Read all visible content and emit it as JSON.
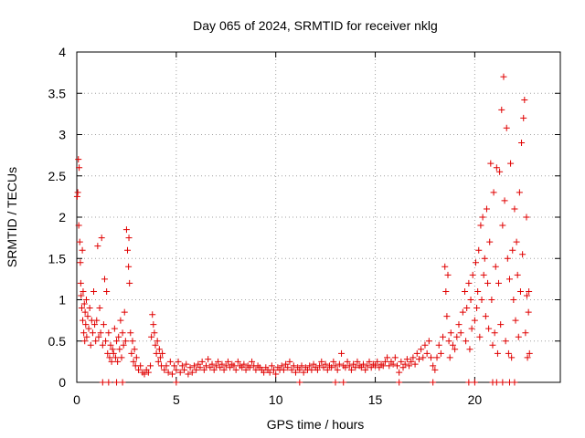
{
  "chart_data": {
    "type": "scatter",
    "title": "Day 065 of 2024, SRMTID for receiver nklg",
    "xlabel": "GPS time / hours",
    "ylabel": "SRMTID / TECUs",
    "xlim": [
      0,
      24.3
    ],
    "ylim": [
      0,
      4
    ],
    "xticks": [
      0,
      5,
      10,
      15,
      20
    ],
    "xtick_labels": [
      "0",
      "5",
      "10",
      "15",
      "20"
    ],
    "yticks": [
      0,
      0.5,
      1,
      1.5,
      2,
      2.5,
      3,
      3.5,
      4
    ],
    "ytick_labels": [
      "0",
      "0.5",
      "1",
      "1.5",
      "2",
      "2.5",
      "3",
      "3.5",
      "4"
    ],
    "grid": true,
    "marker": "+",
    "color": "#e00000",
    "series": [
      {
        "name": "SRMTID",
        "points": [
          [
            0.02,
            2.25
          ],
          [
            0.05,
            2.3
          ],
          [
            0.08,
            2.7
          ],
          [
            0.1,
            1.9
          ],
          [
            0.12,
            2.6
          ],
          [
            0.15,
            1.7
          ],
          [
            0.18,
            1.45
          ],
          [
            0.2,
            1.2
          ],
          [
            0.22,
            1.05
          ],
          [
            0.25,
            0.9
          ],
          [
            0.28,
            1.6
          ],
          [
            0.3,
            0.75
          ],
          [
            0.32,
            1.1
          ],
          [
            0.35,
            0.6
          ],
          [
            0.38,
            0.95
          ],
          [
            0.4,
            0.5
          ],
          [
            0.42,
            0.85
          ],
          [
            0.45,
            0.7
          ],
          [
            0.48,
            1.0
          ],
          [
            0.5,
            0.55
          ],
          [
            0.55,
            0.8
          ],
          [
            0.6,
            0.65
          ],
          [
            0.65,
            0.9
          ],
          [
            0.7,
            0.45
          ],
          [
            0.75,
            0.75
          ],
          [
            0.8,
            0.6
          ],
          [
            0.85,
            1.1
          ],
          [
            0.9,
            0.7
          ],
          [
            0.95,
            0.5
          ],
          [
            1.0,
            0.75
          ],
          [
            1.05,
            1.65
          ],
          [
            1.1,
            0.55
          ],
          [
            1.15,
            0.9
          ],
          [
            1.2,
            0.6
          ],
          [
            1.25,
            1.75
          ],
          [
            1.3,
            0.45
          ],
          [
            1.35,
            0.7
          ],
          [
            1.4,
            1.25
          ],
          [
            1.45,
            0.5
          ],
          [
            1.5,
            1.1
          ],
          [
            1.55,
            0.35
          ],
          [
            1.6,
            0.6
          ],
          [
            1.65,
            0.3
          ],
          [
            1.7,
            0.45
          ],
          [
            1.75,
            0.25
          ],
          [
            1.8,
            0.4
          ],
          [
            1.85,
            0.35
          ],
          [
            1.9,
            0.65
          ],
          [
            1.95,
            0.3
          ],
          [
            2.0,
            0.5
          ],
          [
            2.05,
            0.25
          ],
          [
            2.1,
            0.55
          ],
          [
            2.15,
            0.4
          ],
          [
            2.2,
            0.75
          ],
          [
            2.25,
            0.3
          ],
          [
            2.3,
            0.6
          ],
          [
            2.35,
            0.45
          ],
          [
            2.4,
            0.85
          ],
          [
            2.45,
            0.5
          ],
          [
            2.5,
            1.85
          ],
          [
            2.55,
            1.6
          ],
          [
            2.6,
            1.4
          ],
          [
            2.62,
            1.75
          ],
          [
            2.65,
            1.2
          ],
          [
            2.7,
            0.6
          ],
          [
            2.75,
            0.35
          ],
          [
            2.8,
            0.5
          ],
          [
            2.85,
            0.25
          ],
          [
            2.9,
            0.4
          ],
          [
            2.95,
            0.2
          ],
          [
            3.0,
            0.3
          ],
          [
            3.1,
            0.15
          ],
          [
            3.2,
            0.2
          ],
          [
            3.3,
            0.12
          ],
          [
            3.4,
            0.1
          ],
          [
            3.5,
            0.15
          ],
          [
            3.6,
            0.12
          ],
          [
            3.7,
            0.2
          ],
          [
            3.75,
            0.55
          ],
          [
            3.8,
            0.82
          ],
          [
            3.85,
            0.7
          ],
          [
            3.9,
            0.6
          ],
          [
            3.95,
            0.45
          ],
          [
            4.0,
            0.35
          ],
          [
            4.05,
            0.5
          ],
          [
            4.1,
            0.25
          ],
          [
            4.15,
            0.4
          ],
          [
            4.2,
            0.3
          ],
          [
            4.25,
            0.2
          ],
          [
            4.3,
            0.35
          ],
          [
            4.4,
            0.15
          ],
          [
            4.5,
            0.2
          ],
          [
            4.6,
            0.12
          ],
          [
            4.7,
            0.25
          ],
          [
            4.8,
            0.1
          ],
          [
            4.9,
            0.2
          ],
          [
            5.0,
            0.15
          ],
          [
            5.1,
            0.25
          ],
          [
            5.2,
            0.12
          ],
          [
            5.3,
            0.2
          ],
          [
            5.4,
            0.15
          ],
          [
            5.5,
            0.22
          ],
          [
            5.6,
            0.1
          ],
          [
            5.7,
            0.18
          ],
          [
            5.8,
            0.12
          ],
          [
            5.9,
            0.2
          ],
          [
            6.0,
            0.15
          ],
          [
            6.1,
            0.22
          ],
          [
            6.2,
            0.18
          ],
          [
            6.3,
            0.25
          ],
          [
            6.4,
            0.15
          ],
          [
            6.5,
            0.2
          ],
          [
            6.6,
            0.28
          ],
          [
            6.7,
            0.18
          ],
          [
            6.8,
            0.22
          ],
          [
            6.9,
            0.15
          ],
          [
            7.0,
            0.2
          ],
          [
            7.1,
            0.25
          ],
          [
            7.2,
            0.18
          ],
          [
            7.3,
            0.22
          ],
          [
            7.4,
            0.15
          ],
          [
            7.5,
            0.2
          ],
          [
            7.6,
            0.25
          ],
          [
            7.7,
            0.18
          ],
          [
            7.8,
            0.22
          ],
          [
            7.9,
            0.2
          ],
          [
            8.0,
            0.15
          ],
          [
            8.1,
            0.25
          ],
          [
            8.2,
            0.2
          ],
          [
            8.3,
            0.18
          ],
          [
            8.4,
            0.22
          ],
          [
            8.5,
            0.15
          ],
          [
            8.6,
            0.2
          ],
          [
            8.7,
            0.18
          ],
          [
            8.8,
            0.25
          ],
          [
            8.9,
            0.2
          ],
          [
            9.0,
            0.15
          ],
          [
            9.1,
            0.2
          ],
          [
            9.2,
            0.18
          ],
          [
            9.3,
            0.15
          ],
          [
            9.4,
            0.12
          ],
          [
            9.5,
            0.18
          ],
          [
            9.6,
            0.15
          ],
          [
            9.7,
            0.12
          ],
          [
            9.8,
            0.2
          ],
          [
            9.9,
            0.15
          ],
          [
            10.0,
            0.1
          ],
          [
            10.1,
            0.18
          ],
          [
            10.2,
            0.15
          ],
          [
            10.3,
            0.2
          ],
          [
            10.4,
            0.15
          ],
          [
            10.5,
            0.22
          ],
          [
            10.6,
            0.18
          ],
          [
            10.7,
            0.25
          ],
          [
            10.8,
            0.15
          ],
          [
            10.9,
            0.2
          ],
          [
            11.0,
            0.12
          ],
          [
            11.1,
            0.18
          ],
          [
            11.2,
            0.15
          ],
          [
            11.3,
            0.2
          ],
          [
            11.4,
            0.12
          ],
          [
            11.5,
            0.18
          ],
          [
            11.6,
            0.15
          ],
          [
            11.7,
            0.2
          ],
          [
            11.8,
            0.15
          ],
          [
            11.9,
            0.22
          ],
          [
            12.0,
            0.18
          ],
          [
            12.1,
            0.15
          ],
          [
            12.2,
            0.2
          ],
          [
            12.3,
            0.25
          ],
          [
            12.4,
            0.18
          ],
          [
            12.5,
            0.22
          ],
          [
            12.6,
            0.15
          ],
          [
            12.7,
            0.2
          ],
          [
            12.8,
            0.18
          ],
          [
            12.9,
            0.25
          ],
          [
            13.0,
            0.2
          ],
          [
            13.1,
            0.15
          ],
          [
            13.2,
            0.22
          ],
          [
            13.3,
            0.35
          ],
          [
            13.4,
            0.2
          ],
          [
            13.5,
            0.18
          ],
          [
            13.6,
            0.25
          ],
          [
            13.7,
            0.2
          ],
          [
            13.8,
            0.15
          ],
          [
            13.9,
            0.22
          ],
          [
            14.0,
            0.18
          ],
          [
            14.1,
            0.25
          ],
          [
            14.2,
            0.2
          ],
          [
            14.3,
            0.18
          ],
          [
            14.4,
            0.22
          ],
          [
            14.5,
            0.15
          ],
          [
            14.6,
            0.2
          ],
          [
            14.7,
            0.25
          ],
          [
            14.8,
            0.18
          ],
          [
            14.9,
            0.22
          ],
          [
            15.0,
            0.2
          ],
          [
            15.1,
            0.25
          ],
          [
            15.2,
            0.18
          ],
          [
            15.3,
            0.22
          ],
          [
            15.4,
            0.2
          ],
          [
            15.5,
            0.25
          ],
          [
            15.6,
            0.3
          ],
          [
            15.7,
            0.2
          ],
          [
            15.8,
            0.25
          ],
          [
            15.9,
            0.22
          ],
          [
            16.0,
            0.3
          ],
          [
            16.1,
            0.2
          ],
          [
            16.2,
            0.12
          ],
          [
            16.3,
            0.25
          ],
          [
            16.4,
            0.18
          ],
          [
            16.5,
            0.22
          ],
          [
            16.6,
            0.28
          ],
          [
            16.7,
            0.2
          ],
          [
            16.8,
            0.25
          ],
          [
            16.9,
            0.3
          ],
          [
            17.0,
            0.22
          ],
          [
            17.1,
            0.35
          ],
          [
            17.2,
            0.28
          ],
          [
            17.3,
            0.4
          ],
          [
            17.4,
            0.3
          ],
          [
            17.5,
            0.45
          ],
          [
            17.6,
            0.35
          ],
          [
            17.7,
            0.5
          ],
          [
            17.8,
            0.3
          ],
          [
            17.9,
            0.2
          ],
          [
            18.0,
            0.15
          ],
          [
            18.1,
            0.3
          ],
          [
            18.2,
            0.45
          ],
          [
            18.3,
            0.35
          ],
          [
            18.4,
            0.55
          ],
          [
            18.5,
            1.4
          ],
          [
            18.55,
            1.1
          ],
          [
            18.6,
            0.8
          ],
          [
            18.65,
            1.3
          ],
          [
            18.7,
            0.5
          ],
          [
            18.75,
            0.3
          ],
          [
            18.8,
            0.6
          ],
          [
            18.9,
            0.45
          ],
          [
            19.0,
            0.4
          ],
          [
            19.1,
            0.55
          ],
          [
            19.2,
            0.7
          ],
          [
            19.3,
            0.6
          ],
          [
            19.4,
            0.85
          ],
          [
            19.5,
            1.1
          ],
          [
            19.55,
            0.5
          ],
          [
            19.6,
            0.9
          ],
          [
            19.7,
            1.2
          ],
          [
            19.75,
            0.4
          ],
          [
            19.8,
            1.0
          ],
          [
            19.85,
            0.65
          ],
          [
            19.9,
            1.3
          ],
          [
            20.0,
            0.75
          ],
          [
            20.05,
            1.45
          ],
          [
            20.1,
            0.9
          ],
          [
            20.15,
            1.1
          ],
          [
            20.2,
            1.6
          ],
          [
            20.25,
            0.55
          ],
          [
            20.3,
            1.9
          ],
          [
            20.35,
            1.0
          ],
          [
            20.4,
            2.0
          ],
          [
            20.45,
            1.3
          ],
          [
            20.5,
            1.5
          ],
          [
            20.55,
            0.8
          ],
          [
            20.6,
            2.1
          ],
          [
            20.65,
            1.2
          ],
          [
            20.7,
            0.65
          ],
          [
            20.75,
            1.7
          ],
          [
            20.8,
            2.65
          ],
          [
            20.85,
            1.0
          ],
          [
            20.9,
            0.45
          ],
          [
            20.95,
            2.3
          ],
          [
            21.0,
            0.6
          ],
          [
            21.05,
            1.4
          ],
          [
            21.1,
            2.6
          ],
          [
            21.15,
            0.35
          ],
          [
            21.2,
            1.2
          ],
          [
            21.25,
            2.55
          ],
          [
            21.3,
            0.7
          ],
          [
            21.35,
            3.3
          ],
          [
            21.4,
            1.9
          ],
          [
            21.45,
            3.7
          ],
          [
            21.5,
            2.2
          ],
          [
            21.55,
            0.5
          ],
          [
            21.6,
            3.08
          ],
          [
            21.65,
            1.5
          ],
          [
            21.7,
            0.35
          ],
          [
            21.75,
            1.25
          ],
          [
            21.8,
            2.65
          ],
          [
            21.85,
            0.3
          ],
          [
            21.9,
            1.6
          ],
          [
            21.95,
            1.0
          ],
          [
            22.0,
            2.1
          ],
          [
            22.05,
            0.75
          ],
          [
            22.1,
            1.7
          ],
          [
            22.15,
            1.3
          ],
          [
            22.2,
            0.55
          ],
          [
            22.25,
            2.3
          ],
          [
            22.3,
            1.1
          ],
          [
            22.35,
            2.9
          ],
          [
            22.4,
            1.55
          ],
          [
            22.45,
            3.2
          ],
          [
            22.5,
            3.42
          ],
          [
            22.55,
            0.6
          ],
          [
            22.6,
            2.0
          ],
          [
            22.62,
            1.05
          ],
          [
            22.65,
            0.3
          ],
          [
            22.7,
            0.85
          ],
          [
            22.72,
            1.1
          ],
          [
            22.75,
            0.35
          ]
        ]
      }
    ],
    "extra_low_points_x": [
      1.3,
      1.6,
      2.0,
      2.3,
      5.0,
      11.2,
      13.0,
      13.4,
      16.2,
      17.9,
      19.7,
      20.0,
      20.9,
      21.1,
      21.4,
      21.75,
      22.0
    ]
  }
}
